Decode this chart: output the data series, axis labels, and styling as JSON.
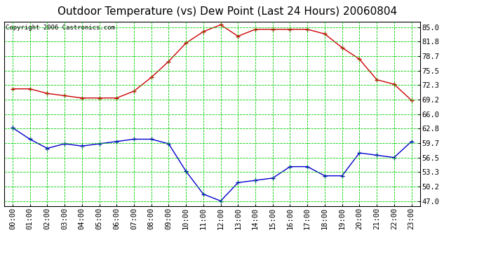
{
  "title": "Outdoor Temperature (vs) Dew Point (Last 24 Hours) 20060804",
  "copyright": "Copyright 2006 Castronics.com",
  "hours": [
    "00:00",
    "01:00",
    "02:00",
    "03:00",
    "04:00",
    "05:00",
    "06:00",
    "07:00",
    "08:00",
    "09:00",
    "10:00",
    "11:00",
    "12:00",
    "13:00",
    "14:00",
    "15:00",
    "16:00",
    "17:00",
    "18:00",
    "19:00",
    "20:00",
    "21:00",
    "22:00",
    "23:00"
  ],
  "temp": [
    71.5,
    71.5,
    70.5,
    70.0,
    69.5,
    69.5,
    69.5,
    71.0,
    74.0,
    77.5,
    81.5,
    84.0,
    85.5,
    83.0,
    84.5,
    84.5,
    84.5,
    84.5,
    83.5,
    80.5,
    78.0,
    73.5,
    72.5,
    69.0
  ],
  "dew": [
    63.0,
    60.5,
    58.5,
    59.5,
    59.0,
    59.5,
    60.0,
    60.5,
    60.5,
    59.5,
    53.5,
    48.5,
    47.0,
    51.0,
    51.5,
    52.0,
    54.5,
    54.5,
    52.5,
    52.5,
    57.5,
    57.0,
    56.5,
    60.0
  ],
  "temp_color": "#cc0000",
  "dew_color": "#0000cc",
  "bg_color": "#ffffff",
  "plot_bg_color": "#ffffff",
  "grid_color": "#00cc00",
  "yticks": [
    47.0,
    50.2,
    53.3,
    56.5,
    59.7,
    62.8,
    66.0,
    69.2,
    72.3,
    75.5,
    78.7,
    81.8,
    85.0
  ],
  "ylim": [
    45.8,
    86.2
  ],
  "title_fontsize": 11,
  "copyright_fontsize": 6.5,
  "tick_fontsize": 7.5
}
